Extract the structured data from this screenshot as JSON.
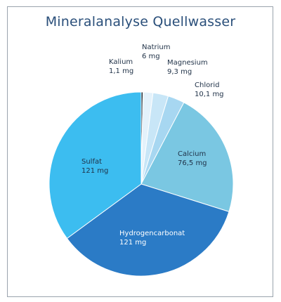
{
  "colors": {
    "background": "#ffffff",
    "border": "#9aa3ad",
    "title": "#2a4f7a",
    "slice_edge": "#ffffff",
    "dark_text": "#1f3147",
    "light_text": "#ffffff"
  },
  "chart_data": {
    "type": "pie",
    "title": "Mineralanalyse Quellwasser",
    "unit": "mg",
    "start": "top",
    "direction": "clockwise",
    "slices": [
      {
        "name": "Kalium",
        "value": 1.1,
        "value_label": "1,1 mg",
        "color": "#1e2a35",
        "label_position": "outside",
        "label_color": "#1f3147"
      },
      {
        "name": "Natrium",
        "value": 6,
        "value_label": "6 mg",
        "color": "#e4f2fb",
        "label_position": "outside",
        "label_color": "#1f3147"
      },
      {
        "name": "Magnesium",
        "value": 9.3,
        "value_label": "9,3 mg",
        "color": "#c8e6f7",
        "label_position": "outside",
        "label_color": "#1f3147"
      },
      {
        "name": "Chlorid",
        "value": 10.1,
        "value_label": "10,1 mg",
        "color": "#a7d7f1",
        "label_position": "outside",
        "label_color": "#1f3147"
      },
      {
        "name": "Calcium",
        "value": 76.5,
        "value_label": "76,5 mg",
        "color": "#7ac7e2",
        "label_position": "inside",
        "label_color": "#1f3147"
      },
      {
        "name": "Hydrogencarbonat",
        "value": 121,
        "value_label": "121 mg",
        "color": "#2b7bc6",
        "label_position": "inside",
        "label_color": "#ffffff"
      },
      {
        "name": "Sulfat",
        "value": 121,
        "value_label": "121 mg",
        "color": "#3cbdf0",
        "label_position": "inside",
        "label_color": "#1f3147"
      }
    ]
  }
}
